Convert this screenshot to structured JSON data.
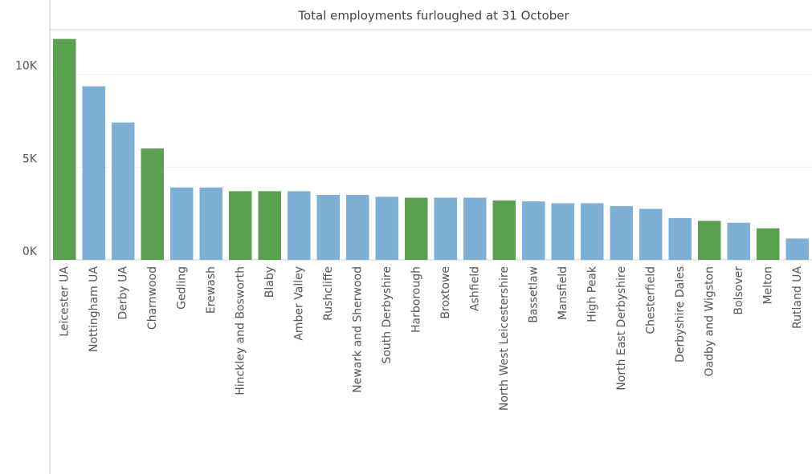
{
  "chart_data": {
    "type": "bar",
    "title": "Total employments furloughed at 31 October",
    "categories": [
      "Leicester UA",
      "Nottingham UA",
      "Derby UA",
      "Charnwood",
      "Gedling",
      "Erewash",
      "Hinckley and Bosworth",
      "Blaby",
      "Amber Valley",
      "Rushcliffe",
      "Newark and Sherwood",
      "South Derbyshire",
      "Harborough",
      "Broxtowe",
      "Ashfield",
      "North West Leicestershire",
      "Bassetlaw",
      "Mansfield",
      "High Peak",
      "North East Derbyshire",
      "Chesterfield",
      "Derbyshire Dales",
      "Oadby and Wigston",
      "Bolsover",
      "Melton",
      "Rutland UA"
    ],
    "values": [
      11900,
      9350,
      7400,
      6000,
      3900,
      3900,
      3700,
      3700,
      3700,
      3500,
      3500,
      3400,
      3350,
      3350,
      3350,
      3200,
      3150,
      3050,
      3050,
      2900,
      2750,
      2250,
      2100,
      2000,
      1700,
      1150
    ],
    "colors": [
      "#59a14f",
      "#7eb0d5",
      "#7eb0d5",
      "#59a14f",
      "#7eb0d5",
      "#7eb0d5",
      "#59a14f",
      "#59a14f",
      "#7eb0d5",
      "#7eb0d5",
      "#7eb0d5",
      "#7eb0d5",
      "#59a14f",
      "#7eb0d5",
      "#7eb0d5",
      "#59a14f",
      "#7eb0d5",
      "#7eb0d5",
      "#7eb0d5",
      "#7eb0d5",
      "#7eb0d5",
      "#7eb0d5",
      "#59a14f",
      "#7eb0d5",
      "#59a14f",
      "#7eb0d5"
    ],
    "ylim": [
      0,
      12400
    ],
    "yticks": [
      {
        "value": 0,
        "label": "0K"
      },
      {
        "value": 5000,
        "label": "5K"
      },
      {
        "value": 10000,
        "label": "10K"
      }
    ],
    "grid": true
  }
}
